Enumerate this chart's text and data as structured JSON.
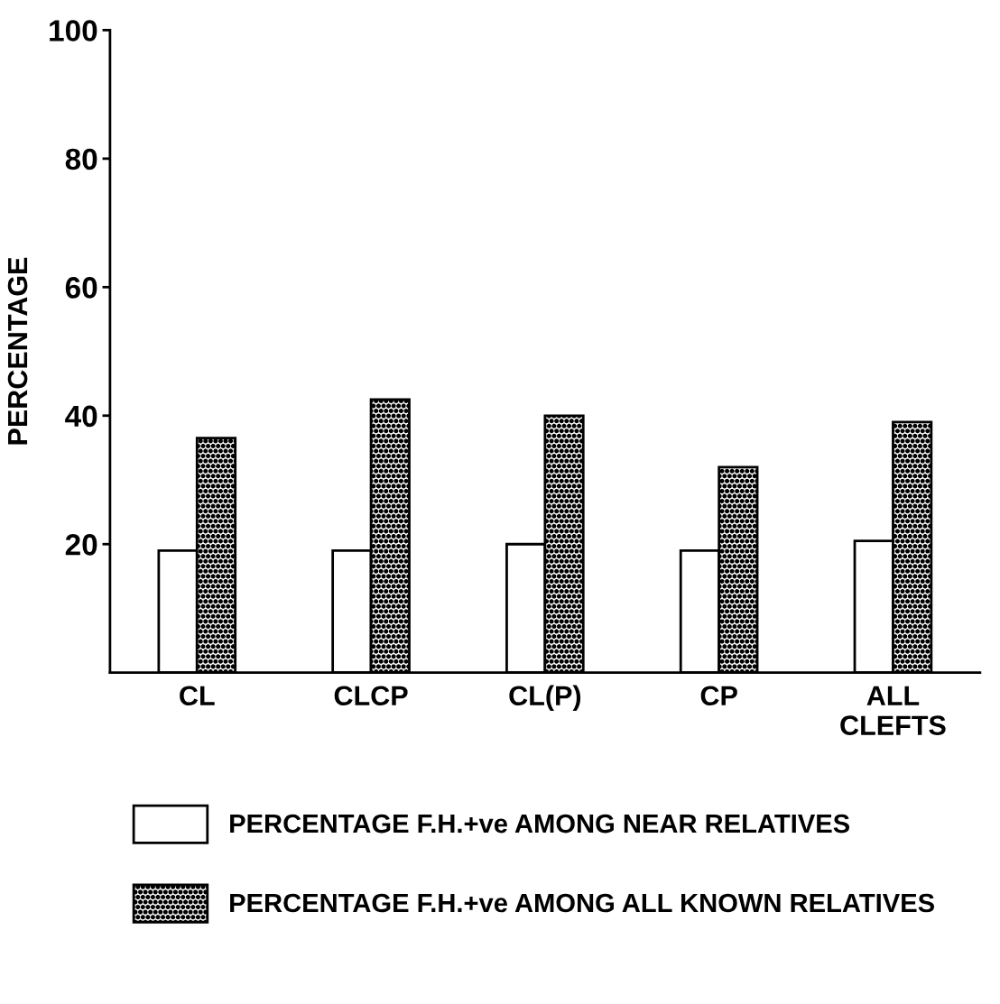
{
  "chart_data": {
    "type": "bar",
    "ylabel": "PERCENTAGE",
    "categories": [
      "CL",
      "CLCP",
      "CL(P)",
      "CP",
      "ALL\nCLEFTS"
    ],
    "series": [
      {
        "name": "PERCENTAGE F.H.+ve AMONG NEAR RELATIVES",
        "color": "#ffffff",
        "values": [
          19,
          19,
          20,
          19,
          20.5
        ]
      },
      {
        "name": "PERCENTAGE F.H.+ve AMONG ALL KNOWN RELATIVES",
        "color": "#000000",
        "values": [
          36.5,
          42.5,
          40,
          32,
          39
        ]
      }
    ],
    "ylim": [
      0,
      100
    ],
    "yticks": [
      20,
      40,
      60,
      80,
      100
    ],
    "grid": false,
    "legend": "bottom"
  }
}
